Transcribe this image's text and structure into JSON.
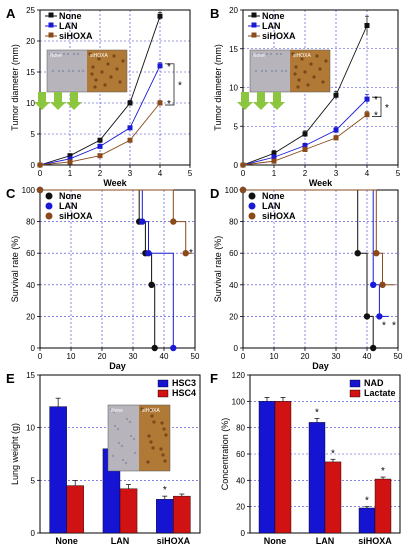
{
  "figure": {
    "panels": [
      "A",
      "B",
      "C",
      "D",
      "E",
      "F"
    ]
  },
  "colors": {
    "none": "#111111",
    "lan": "#1a1ad6",
    "sihoxa": "#8a4a1a",
    "bar_blue": "#1414d2",
    "bar_red": "#d01212",
    "grid": "#3a3ad0",
    "arrow": "#8cc63f"
  },
  "chart_data": [
    {
      "panel": "A",
      "type": "line",
      "xlabel": "Week",
      "ylabel": "Tumor diameter (mm)",
      "xlim": [
        0,
        5
      ],
      "ylim": [
        0,
        25
      ],
      "xticks": [
        0,
        1,
        2,
        3,
        4,
        5
      ],
      "yticks": [
        0,
        5,
        10,
        15,
        20,
        25
      ],
      "grid": true,
      "legend": "top-left",
      "inset_labels": [
        "None",
        "siHOXA"
      ],
      "x": [
        0,
        1,
        2,
        3,
        4
      ],
      "series": [
        {
          "name": "None",
          "values": [
            0,
            1.5,
            4,
            10,
            24
          ],
          "errors": [
            0,
            0.2,
            0.3,
            0.4,
            0.6
          ],
          "marker": "square",
          "color_key": "none"
        },
        {
          "name": "LAN",
          "values": [
            0,
            1,
            3,
            6,
            16
          ],
          "errors": [
            0,
            0.2,
            0.3,
            0.3,
            0.5
          ],
          "marker": "square",
          "color_key": "lan"
        },
        {
          "name": "siHOXA",
          "values": [
            0,
            0.5,
            1.5,
            4,
            10
          ],
          "errors": [
            0,
            0.1,
            0.2,
            0.3,
            0.4
          ],
          "marker": "square",
          "color_key": "sihoxa"
        }
      ],
      "annotations": [
        "*",
        "*",
        "*"
      ]
    },
    {
      "panel": "B",
      "type": "line",
      "xlabel": "Week",
      "ylabel": "Tumor diameter (mm)",
      "xlim": [
        0,
        5
      ],
      "ylim": [
        0,
        20
      ],
      "xticks": [
        0,
        1,
        2,
        3,
        4,
        5
      ],
      "yticks": [
        0,
        5,
        10,
        15,
        20
      ],
      "grid": true,
      "legend": "top-left",
      "inset_labels": [
        "None",
        "siHOXA"
      ],
      "x": [
        0,
        1,
        2,
        3,
        4
      ],
      "series": [
        {
          "name": "None",
          "values": [
            0,
            1.5,
            4,
            9,
            18
          ],
          "errors": [
            0,
            0.4,
            0.4,
            0.5,
            1.2
          ],
          "marker": "square",
          "color_key": "none"
        },
        {
          "name": "LAN",
          "values": [
            0,
            1,
            2.5,
            4.5,
            8.5
          ],
          "errors": [
            0,
            0.3,
            0.3,
            0.4,
            0.6
          ],
          "marker": "square",
          "color_key": "lan"
        },
        {
          "name": "siHOXA",
          "values": [
            0,
            0.5,
            2,
            3.5,
            6.5
          ],
          "errors": [
            0,
            0.2,
            0.3,
            0.3,
            0.4
          ],
          "marker": "square",
          "color_key": "sihoxa"
        }
      ],
      "annotations": [
        "*",
        "*",
        "*"
      ]
    },
    {
      "panel": "C",
      "type": "line",
      "step": true,
      "xlabel": "Day",
      "ylabel": "Survival rate (%)",
      "xlim": [
        0,
        50
      ],
      "ylim": [
        0,
        100
      ],
      "xticks": [
        0,
        10,
        20,
        30,
        40,
        50
      ],
      "yticks": [
        0,
        20,
        40,
        60,
        80,
        100
      ],
      "grid": true,
      "legend": "top-left",
      "series": [
        {
          "name": "None",
          "x": [
            0,
            32,
            32,
            34,
            34,
            36,
            36,
            37,
            37
          ],
          "values": [
            100,
            100,
            80,
            80,
            60,
            60,
            40,
            40,
            0
          ],
          "color_key": "none"
        },
        {
          "name": "LAN",
          "x": [
            0,
            33,
            33,
            35,
            35,
            43,
            43
          ],
          "values": [
            100,
            100,
            80,
            80,
            60,
            60,
            0
          ],
          "color_key": "lan"
        },
        {
          "name": "siHOXA",
          "x": [
            0,
            43,
            43,
            47,
            47,
            49
          ],
          "values": [
            100,
            100,
            80,
            80,
            60,
            60
          ],
          "color_key": "sihoxa"
        }
      ],
      "annotations": [
        "*"
      ]
    },
    {
      "panel": "D",
      "type": "line",
      "step": true,
      "xlabel": "Day",
      "ylabel": "Survival rate (%)",
      "xlim": [
        0,
        50
      ],
      "ylim": [
        0,
        100
      ],
      "xticks": [
        0,
        10,
        20,
        30,
        40,
        50
      ],
      "yticks": [
        0,
        20,
        40,
        60,
        80,
        100
      ],
      "grid": true,
      "legend": "top-left",
      "series": [
        {
          "name": "None",
          "x": [
            0,
            37,
            37,
            40,
            40,
            42,
            42
          ],
          "values": [
            100,
            100,
            60,
            60,
            20,
            20,
            0
          ],
          "color_key": "none"
        },
        {
          "name": "LAN",
          "x": [
            0,
            42,
            42,
            44,
            44,
            47
          ],
          "values": [
            100,
            100,
            40,
            40,
            20,
            20
          ],
          "color_key": "lan"
        },
        {
          "name": "siHOXA",
          "x": [
            0,
            43,
            43,
            45,
            45,
            49
          ],
          "values": [
            100,
            100,
            60,
            60,
            40,
            40
          ],
          "color_key": "sihoxa"
        }
      ],
      "annotations": [
        "*",
        "*"
      ]
    },
    {
      "panel": "E",
      "type": "bar",
      "ylabel": "Lung weight (g)",
      "ylim": [
        0,
        15
      ],
      "yticks": [
        0,
        5,
        10,
        15
      ],
      "grid": true,
      "legend": "top-right",
      "categories": [
        "None",
        "LAN",
        "siHOXA"
      ],
      "inset_labels": [
        "None",
        "siHOXA"
      ],
      "series": [
        {
          "name": "HSC3",
          "values": [
            12,
            8,
            3.2
          ],
          "errors": [
            0.8,
            0.6,
            0.3
          ],
          "color_key": "bar_blue"
        },
        {
          "name": "HSC4",
          "values": [
            4.5,
            4.2,
            3.5
          ],
          "errors": [
            0.5,
            0.4,
            0.2
          ],
          "color_key": "bar_red"
        }
      ],
      "annotations": [
        "*",
        "*"
      ]
    },
    {
      "panel": "F",
      "type": "bar",
      "ylabel": "Concentration (%)",
      "ylim": [
        0,
        120
      ],
      "yticks": [
        0,
        20,
        40,
        60,
        80,
        100,
        120
      ],
      "grid": true,
      "legend": "top-right",
      "categories": [
        "None",
        "LAN",
        "siHOXA"
      ],
      "series": [
        {
          "name": "NAD",
          "values": [
            100,
            84,
            19
          ],
          "errors": [
            3,
            3,
            1
          ],
          "color_key": "bar_blue"
        },
        {
          "name": "Lactate",
          "values": [
            100,
            54,
            41
          ],
          "errors": [
            3,
            2,
            1.5
          ],
          "color_key": "bar_red"
        }
      ],
      "annotations": [
        "*",
        "*",
        "*",
        "*"
      ]
    }
  ]
}
